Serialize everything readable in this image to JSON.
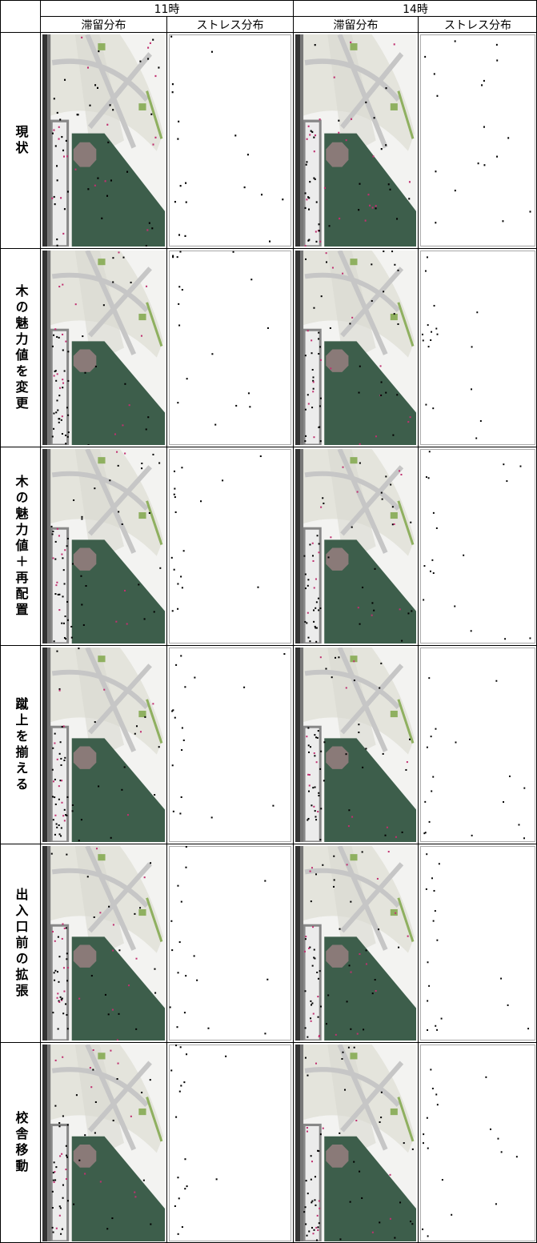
{
  "header": {
    "groups": [
      "11時",
      "14時"
    ],
    "subheaders": [
      "滞留分布",
      "ストレス分布",
      "滞留分布",
      "ストレス分布"
    ]
  },
  "rows": [
    "現状",
    "木の魅力値を変更",
    "木の魅力値＋再配置",
    "蹴上を揃える",
    "出入口前の拡張",
    "校舎移動"
  ]
}
